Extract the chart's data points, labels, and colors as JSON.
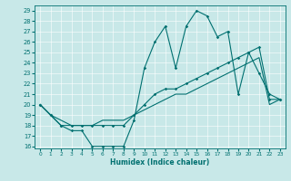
{
  "xlabel": "Humidex (Indice chaleur)",
  "bg_color": "#c8e8e8",
  "line_color": "#007070",
  "xlim": [
    -0.5,
    23.5
  ],
  "ylim": [
    15.8,
    29.5
  ],
  "yticks": [
    16,
    17,
    18,
    19,
    20,
    21,
    22,
    23,
    24,
    25,
    26,
    27,
    28,
    29
  ],
  "xticks": [
    0,
    1,
    2,
    3,
    4,
    5,
    6,
    7,
    8,
    9,
    10,
    11,
    12,
    13,
    14,
    15,
    16,
    17,
    18,
    19,
    20,
    21,
    22,
    23
  ],
  "line1": [
    20,
    19,
    18,
    17.5,
    17.5,
    16,
    16,
    16,
    16,
    18.5,
    23.5,
    26,
    27.5,
    23.5,
    27.5,
    29,
    28.5,
    26.5,
    27,
    21,
    25,
    23,
    21,
    20.5
  ],
  "line2": [
    20,
    19,
    18,
    18,
    18,
    18,
    18,
    18,
    18,
    19,
    20,
    21,
    21.5,
    21.5,
    22,
    22.5,
    23,
    23.5,
    24,
    24.5,
    25,
    25.5,
    20.5,
    20.5
  ],
  "line3": [
    20,
    19,
    18.5,
    18,
    18,
    18,
    18.5,
    18.5,
    18.5,
    19,
    19.5,
    20,
    20.5,
    21,
    21,
    21.5,
    22,
    22.5,
    23,
    23.5,
    24,
    24.5,
    20,
    20.5
  ]
}
